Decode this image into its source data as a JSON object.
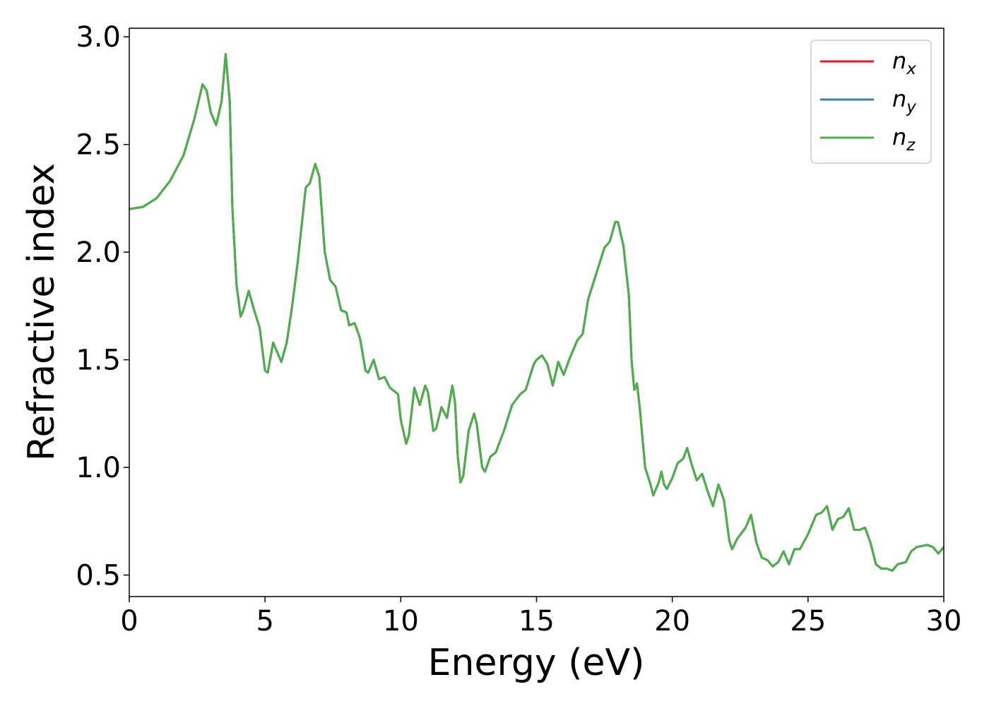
{
  "chart_data": {
    "type": "line",
    "xlabel": "Energy (eV)",
    "ylabel": "Refractive index",
    "xlim": [
      0,
      30
    ],
    "ylim": [
      0.4,
      3.04
    ],
    "xticks": [
      0,
      5,
      10,
      15,
      20,
      25,
      30
    ],
    "yticks": [
      0.5,
      {
        "value": 1,
        "label": "1.0"
      },
      1.5,
      {
        "value": 2,
        "label": "2.0"
      },
      2.5,
      {
        "value": 3,
        "label": "3.0"
      }
    ],
    "legend": "upper right",
    "x": [
      0,
      0.5,
      1.0,
      1.5,
      2.0,
      2.4,
      2.7,
      2.85,
      3.0,
      3.2,
      3.4,
      3.55,
      3.7,
      3.8,
      3.95,
      4.1,
      4.2,
      4.4,
      4.6,
      4.8,
      5.0,
      5.1,
      5.3,
      5.4,
      5.6,
      5.8,
      6.0,
      6.2,
      6.5,
      6.65,
      6.85,
      7.0,
      7.2,
      7.4,
      7.6,
      7.8,
      8.0,
      8.1,
      8.3,
      8.5,
      8.7,
      8.8,
      9.0,
      9.2,
      9.4,
      9.6,
      9.9,
      10.0,
      10.2,
      10.3,
      10.5,
      10.7,
      10.9,
      11.0,
      11.2,
      11.3,
      11.5,
      11.7,
      11.9,
      12.0,
      12.1,
      12.2,
      12.3,
      12.5,
      12.7,
      12.8,
      13.0,
      13.1,
      13.3,
      13.5,
      13.8,
      14.1,
      14.4,
      14.6,
      14.9,
      15.0,
      15.2,
      15.4,
      15.6,
      15.8,
      16.0,
      16.2,
      16.5,
      16.7,
      16.9,
      17.2,
      17.5,
      17.7,
      17.9,
      18.0,
      18.2,
      18.4,
      18.5,
      18.6,
      18.7,
      18.8,
      19.0,
      19.2,
      19.3,
      19.5,
      19.6,
      19.7,
      19.8,
      20.0,
      20.2,
      20.4,
      20.55,
      20.7,
      20.9,
      21.1,
      21.3,
      21.5,
      21.7,
      21.9,
      22.1,
      22.2,
      22.4,
      22.7,
      22.9,
      23.1,
      23.3,
      23.5,
      23.7,
      23.9,
      24.1,
      24.3,
      24.5,
      24.7,
      25.0,
      25.3,
      25.5,
      25.7,
      25.9,
      26.1,
      26.3,
      26.5,
      26.7,
      26.9,
      27.1,
      27.3,
      27.5,
      27.7,
      27.9,
      28.1,
      28.3,
      28.6,
      28.8,
      29.0,
      29.4,
      29.6,
      29.8,
      30.0
    ],
    "series": [
      {
        "name": "nx",
        "color": "#e41a1c",
        "values": [
          2.2,
          2.21,
          2.25,
          2.33,
          2.45,
          2.62,
          2.78,
          2.75,
          2.65,
          2.59,
          2.7,
          2.92,
          2.7,
          2.2,
          1.85,
          1.7,
          1.73,
          1.82,
          1.73,
          1.65,
          1.45,
          1.44,
          1.58,
          1.55,
          1.49,
          1.58,
          1.75,
          1.95,
          2.3,
          2.32,
          2.41,
          2.35,
          2.0,
          1.87,
          1.84,
          1.73,
          1.72,
          1.66,
          1.67,
          1.6,
          1.45,
          1.44,
          1.5,
          1.41,
          1.42,
          1.37,
          1.34,
          1.22,
          1.11,
          1.15,
          1.37,
          1.29,
          1.38,
          1.35,
          1.17,
          1.18,
          1.28,
          1.23,
          1.38,
          1.3,
          1.05,
          0.93,
          0.96,
          1.17,
          1.25,
          1.2,
          1.0,
          0.98,
          1.05,
          1.07,
          1.17,
          1.29,
          1.34,
          1.36,
          1.48,
          1.5,
          1.52,
          1.48,
          1.38,
          1.49,
          1.43,
          1.5,
          1.59,
          1.62,
          1.78,
          1.9,
          2.02,
          2.05,
          2.14,
          2.14,
          2.03,
          1.8,
          1.5,
          1.36,
          1.39,
          1.28,
          1.0,
          0.92,
          0.87,
          0.93,
          0.98,
          0.92,
          0.9,
          0.95,
          1.02,
          1.04,
          1.09,
          1.02,
          0.94,
          0.97,
          0.89,
          0.82,
          0.92,
          0.85,
          0.66,
          0.62,
          0.67,
          0.72,
          0.78,
          0.65,
          0.58,
          0.57,
          0.54,
          0.56,
          0.61,
          0.55,
          0.62,
          0.62,
          0.69,
          0.78,
          0.79,
          0.82,
          0.71,
          0.76,
          0.77,
          0.81,
          0.71,
          0.71,
          0.72,
          0.65,
          0.55,
          0.53,
          0.53,
          0.52,
          0.55,
          0.56,
          0.61,
          0.63,
          0.64,
          0.63,
          0.6,
          0.63
        ]
      },
      {
        "name": "ny",
        "color": "#377eb8",
        "values": [
          2.2,
          2.21,
          2.25,
          2.33,
          2.45,
          2.62,
          2.78,
          2.75,
          2.65,
          2.59,
          2.7,
          2.92,
          2.7,
          2.2,
          1.85,
          1.7,
          1.73,
          1.82,
          1.73,
          1.65,
          1.45,
          1.44,
          1.58,
          1.55,
          1.49,
          1.58,
          1.75,
          1.95,
          2.3,
          2.32,
          2.41,
          2.35,
          2.0,
          1.87,
          1.84,
          1.73,
          1.72,
          1.66,
          1.67,
          1.6,
          1.45,
          1.44,
          1.5,
          1.41,
          1.42,
          1.37,
          1.34,
          1.22,
          1.11,
          1.15,
          1.37,
          1.29,
          1.38,
          1.35,
          1.17,
          1.18,
          1.28,
          1.23,
          1.38,
          1.3,
          1.05,
          0.93,
          0.96,
          1.17,
          1.25,
          1.2,
          1.0,
          0.98,
          1.05,
          1.07,
          1.17,
          1.29,
          1.34,
          1.36,
          1.48,
          1.5,
          1.52,
          1.48,
          1.38,
          1.49,
          1.43,
          1.5,
          1.59,
          1.62,
          1.78,
          1.9,
          2.02,
          2.05,
          2.14,
          2.14,
          2.03,
          1.8,
          1.5,
          1.36,
          1.39,
          1.28,
          1.0,
          0.92,
          0.87,
          0.93,
          0.98,
          0.92,
          0.9,
          0.95,
          1.02,
          1.04,
          1.09,
          1.02,
          0.94,
          0.97,
          0.89,
          0.82,
          0.92,
          0.85,
          0.66,
          0.62,
          0.67,
          0.72,
          0.78,
          0.65,
          0.58,
          0.57,
          0.54,
          0.56,
          0.61,
          0.55,
          0.62,
          0.62,
          0.69,
          0.78,
          0.79,
          0.82,
          0.71,
          0.76,
          0.77,
          0.81,
          0.71,
          0.71,
          0.72,
          0.65,
          0.55,
          0.53,
          0.53,
          0.52,
          0.55,
          0.56,
          0.61,
          0.63,
          0.64,
          0.63,
          0.6,
          0.63
        ]
      },
      {
        "name": "nz",
        "color": "#4daf4a",
        "values": [
          2.2,
          2.21,
          2.25,
          2.33,
          2.45,
          2.62,
          2.78,
          2.75,
          2.65,
          2.59,
          2.7,
          2.92,
          2.7,
          2.2,
          1.85,
          1.7,
          1.73,
          1.82,
          1.73,
          1.65,
          1.45,
          1.44,
          1.58,
          1.55,
          1.49,
          1.58,
          1.75,
          1.95,
          2.3,
          2.32,
          2.41,
          2.35,
          2.0,
          1.87,
          1.84,
          1.73,
          1.72,
          1.66,
          1.67,
          1.6,
          1.45,
          1.44,
          1.5,
          1.41,
          1.42,
          1.37,
          1.34,
          1.22,
          1.11,
          1.15,
          1.37,
          1.29,
          1.38,
          1.35,
          1.17,
          1.18,
          1.28,
          1.23,
          1.38,
          1.3,
          1.05,
          0.93,
          0.96,
          1.17,
          1.25,
          1.2,
          1.0,
          0.98,
          1.05,
          1.07,
          1.17,
          1.29,
          1.34,
          1.36,
          1.48,
          1.5,
          1.52,
          1.48,
          1.38,
          1.49,
          1.43,
          1.5,
          1.59,
          1.62,
          1.78,
          1.9,
          2.02,
          2.05,
          2.14,
          2.14,
          2.03,
          1.8,
          1.5,
          1.36,
          1.39,
          1.28,
          1.0,
          0.92,
          0.87,
          0.93,
          0.98,
          0.92,
          0.9,
          0.95,
          1.02,
          1.04,
          1.09,
          1.02,
          0.94,
          0.97,
          0.89,
          0.82,
          0.92,
          0.85,
          0.66,
          0.62,
          0.67,
          0.72,
          0.78,
          0.65,
          0.58,
          0.57,
          0.54,
          0.56,
          0.61,
          0.55,
          0.62,
          0.62,
          0.69,
          0.78,
          0.79,
          0.82,
          0.71,
          0.76,
          0.77,
          0.81,
          0.71,
          0.71,
          0.72,
          0.65,
          0.55,
          0.53,
          0.53,
          0.52,
          0.55,
          0.56,
          0.61,
          0.63,
          0.64,
          0.63,
          0.6,
          0.63
        ]
      }
    ]
  }
}
